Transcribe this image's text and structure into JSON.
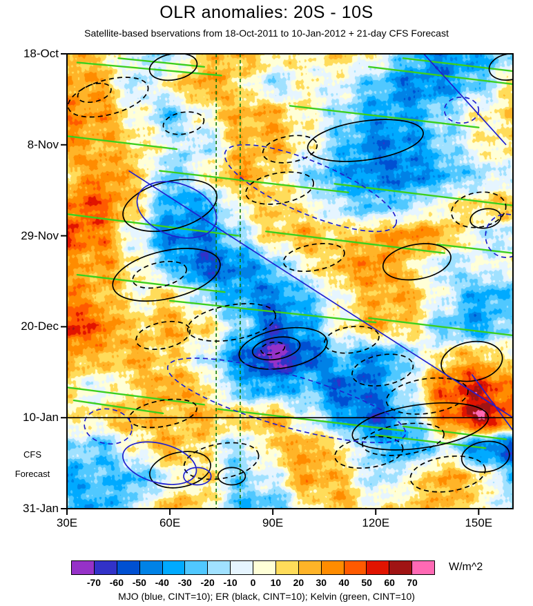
{
  "title": "OLR anomalies: 20S - 10S",
  "subtitle": "Satellite-based bservations from 18-Oct-2011 to 10-Jan-2012 + 21-day CFS Forecast",
  "caption": "MJO (blue, CINT=10); ER (black, CINT=10); Kelvin (green, CINT=10)",
  "units_label": "W/m^2",
  "forecast_label_line1": "CFS",
  "forecast_label_line2": "Forecast",
  "chart_data": {
    "type": "heatmap",
    "title": "OLR anomalies: 20S - 10S",
    "x_axis": {
      "min": 30,
      "max": 160,
      "ticks": [
        30,
        60,
        90,
        120,
        150
      ],
      "tick_labels": [
        "30E",
        "60E",
        "90E",
        "120E",
        "150E"
      ]
    },
    "y_axis": {
      "min_day": 0,
      "max_day": 105,
      "tick_days": [
        0,
        21,
        42,
        63,
        84,
        105
      ],
      "tick_labels": [
        "18-Oct",
        "8-Nov",
        "29-Nov",
        "20-Dec",
        "10-Jan",
        "31-Jan"
      ]
    },
    "forecast_start_day": 84,
    "vertical_dashed_lons": [
      73.5,
      80.5
    ],
    "colors": {
      "er": "#000000",
      "mjo": "#2020CE",
      "kelvin": "#3CCF1E",
      "vline": "#0E7A0E",
      "frame": "#000000",
      "forecast_line": "#000000"
    },
    "colorbar": {
      "levels": [
        -70,
        -60,
        -50,
        -40,
        -30,
        -20,
        -10,
        0,
        10,
        20,
        30,
        40,
        50,
        60,
        70
      ],
      "colors": [
        "#9632C8",
        "#3232C8",
        "#0050D2",
        "#0082E6",
        "#00AAFF",
        "#50C8FF",
        "#A0E1FF",
        "#E6F5FF",
        "#FFFFD7",
        "#FFDC5A",
        "#FFB428",
        "#FF8C00",
        "#FF5A00",
        "#E11400",
        "#A01414",
        "#FF69B4"
      ]
    },
    "field": {
      "units": "W/m^2",
      "lon_start": 30,
      "lon_step": 10,
      "day_start": 0,
      "day_step": 7,
      "values": [
        [
          25,
          15,
          -5,
          -15,
          15,
          25,
          15,
          5,
          15,
          5,
          -25,
          -45,
          -35,
          -15
        ],
        [
          30,
          25,
          -15,
          10,
          30,
          15,
          -15,
          5,
          -5,
          -25,
          -45,
          -40,
          -20,
          10
        ],
        [
          35,
          30,
          5,
          -25,
          5,
          25,
          25,
          5,
          -15,
          -35,
          -35,
          -15,
          5,
          15
        ],
        [
          30,
          25,
          15,
          -5,
          -15,
          20,
          25,
          5,
          -25,
          -45,
          -40,
          -20,
          5,
          15
        ],
        [
          15,
          35,
          20,
          -25,
          5,
          30,
          15,
          -15,
          -35,
          -45,
          -45,
          -30,
          -15,
          -5
        ],
        [
          40,
          45,
          15,
          -35,
          -35,
          5,
          20,
          5,
          -15,
          -25,
          -15,
          5,
          15,
          20
        ],
        [
          50,
          35,
          -5,
          -45,
          -45,
          -15,
          15,
          25,
          15,
          25,
          35,
          25,
          -5,
          -15
        ],
        [
          25,
          30,
          10,
          -25,
          -55,
          -45,
          -25,
          5,
          25,
          35,
          15,
          -15,
          -5,
          5
        ],
        [
          35,
          25,
          5,
          15,
          -15,
          -35,
          -45,
          -25,
          5,
          25,
          25,
          -5,
          -35,
          -25
        ],
        [
          55,
          40,
          15,
          25,
          15,
          -15,
          -55,
          -35,
          5,
          25,
          15,
          -25,
          -35,
          -15
        ],
        [
          30,
          20,
          25,
          15,
          -5,
          -45,
          -75,
          -55,
          -25,
          -45,
          -15,
          15,
          25,
          5
        ],
        [
          10,
          -5,
          15,
          30,
          15,
          -25,
          -35,
          -25,
          -55,
          -45,
          -5,
          45,
          55,
          35
        ],
        [
          5,
          15,
          25,
          20,
          25,
          15,
          25,
          -5,
          -35,
          -55,
          -25,
          35,
          65,
          45
        ],
        [
          -15,
          -25,
          5,
          25,
          10,
          -15,
          15,
          30,
          10,
          -25,
          -35,
          -5,
          -45,
          -55
        ],
        [
          -35,
          -25,
          -30,
          -5,
          15,
          -20,
          -5,
          30,
          20,
          -15,
          5,
          30,
          15,
          -25
        ],
        [
          -25,
          -35,
          -10,
          25,
          15,
          -25,
          -30,
          5,
          25,
          5,
          15,
          25,
          10,
          -15
        ]
      ]
    },
    "overlays": {
      "er_ellipses": [
        [
          42,
          10,
          12,
          4,
          -15,
          1
        ],
        [
          38,
          9,
          5,
          2,
          -15,
          1
        ],
        [
          64,
          16,
          6,
          2.5,
          -10,
          1
        ],
        [
          117,
          20,
          17,
          4.5,
          -8,
          0
        ],
        [
          95,
          22,
          8,
          3,
          -10,
          1
        ],
        [
          92,
          31,
          10,
          3.5,
          -10,
          1
        ],
        [
          60,
          35,
          14,
          5.5,
          -14,
          0
        ],
        [
          150,
          36,
          8,
          4,
          -10,
          1
        ],
        [
          152,
          38,
          4.5,
          2.2,
          -10,
          0
        ],
        [
          59,
          51,
          16,
          5.5,
          -13,
          0
        ],
        [
          57,
          51,
          8,
          2.8,
          -13,
          1
        ],
        [
          102,
          47,
          9,
          3,
          -10,
          1
        ],
        [
          132,
          48,
          10,
          4,
          -10,
          0
        ],
        [
          78,
          62,
          13,
          4,
          -10,
          1
        ],
        [
          58,
          65,
          8,
          3,
          -12,
          1
        ],
        [
          93,
          68,
          13,
          4.5,
          -10,
          0
        ],
        [
          91,
          68,
          7,
          2.5,
          -10,
          0
        ],
        [
          90,
          68,
          3.5,
          1.4,
          -10,
          1
        ],
        [
          113,
          66,
          8,
          3,
          -8,
          1
        ],
        [
          122,
          73,
          9,
          3.5,
          -10,
          1
        ],
        [
          148,
          71,
          9,
          4.5,
          -10,
          0
        ],
        [
          135,
          79,
          12,
          4,
          -8,
          1
        ],
        [
          133,
          86,
          20,
          5,
          -8,
          0
        ],
        [
          128,
          89,
          12,
          3.5,
          -8,
          1
        ],
        [
          58,
          83,
          10,
          3,
          -10,
          1
        ],
        [
          75,
          94,
          11,
          4,
          -10,
          1
        ],
        [
          63,
          96,
          9,
          4,
          -12,
          0
        ],
        [
          78,
          97.5,
          4,
          2,
          0,
          0
        ],
        [
          118,
          92,
          10,
          3.5,
          -8,
          1
        ],
        [
          141,
          97,
          11,
          4,
          -8,
          1
        ],
        [
          152,
          93,
          7,
          3.5,
          -8,
          0
        ],
        [
          61,
          3,
          7,
          3,
          -10,
          0
        ],
        [
          159,
          3,
          6,
          3,
          -10,
          0
        ]
      ],
      "mjo_ellipses": [
        [
          145,
          13,
          5,
          3,
          0,
          1
        ],
        [
          101,
          31,
          27,
          6,
          23,
          1
        ],
        [
          158,
          42,
          6,
          5,
          0,
          1
        ],
        [
          62,
          36,
          12,
          6,
          20,
          0
        ],
        [
          94,
          80,
          36,
          6,
          16,
          1
        ],
        [
          42,
          86,
          7,
          4,
          10,
          1
        ],
        [
          57,
          94.5,
          11,
          4.5,
          15,
          0
        ],
        [
          68,
          97.5,
          4,
          2,
          0,
          0
        ]
      ],
      "mjo_lines": [
        [
          48,
          27,
          160,
          84
        ],
        [
          134,
          0,
          158,
          21
        ],
        [
          148,
          74,
          161,
          88
        ]
      ],
      "kelvin_lines": [
        [
          33,
          2,
          75,
          5
        ],
        [
          45,
          1,
          70,
          3
        ],
        [
          118,
          3,
          160,
          7
        ],
        [
          128,
          1,
          160,
          4
        ],
        [
          95,
          12,
          150,
          17
        ],
        [
          30,
          19,
          62,
          22
        ],
        [
          57,
          27,
          112,
          32
        ],
        [
          108,
          30,
          160,
          35
        ],
        [
          30,
          37,
          80,
          42
        ],
        [
          88,
          41,
          140,
          46
        ],
        [
          138,
          44,
          160,
          46
        ],
        [
          33,
          51,
          76,
          55
        ],
        [
          60,
          57,
          120,
          62
        ],
        [
          118,
          61,
          160,
          65
        ],
        [
          30,
          77,
          70,
          81
        ],
        [
          32,
          80,
          58,
          83
        ],
        [
          74,
          82,
          128,
          87
        ],
        [
          128,
          86,
          158,
          89
        ],
        [
          120,
          88,
          152,
          91
        ]
      ]
    }
  }
}
